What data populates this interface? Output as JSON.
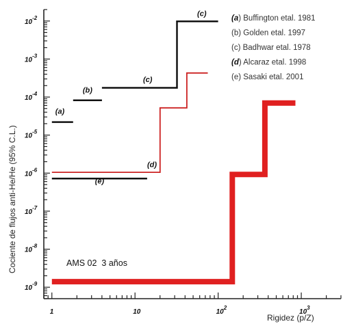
{
  "chart_data": {
    "type": "line",
    "title": "",
    "xlabel": "Rigidez (p/Z)",
    "ylabel": "Cociente de flujos anti-He/He  (95% C.L.)",
    "xscale": "log",
    "yscale": "log",
    "xlim": [
      0.8,
      3000
    ],
    "ylim": [
      5e-10,
      0.02
    ],
    "grid": false,
    "x_ticks": [
      {
        "value": 1,
        "label": "1"
      },
      {
        "value": 10,
        "label": "10"
      },
      {
        "value": 100,
        "label": "10",
        "exp": "2"
      },
      {
        "value": 1000,
        "label": "10",
        "exp": "3"
      }
    ],
    "y_ticks": [
      {
        "value": 0.01,
        "label": "10",
        "exp": "-2"
      },
      {
        "value": 0.001,
        "label": "10",
        "exp": "-3"
      },
      {
        "value": 0.0001,
        "label": "10",
        "exp": "-4"
      },
      {
        "value": 1e-05,
        "label": "10",
        "exp": "-5"
      },
      {
        "value": 1e-06,
        "label": "10",
        "exp": "-6"
      },
      {
        "value": 1e-07,
        "label": "10",
        "exp": "-7"
      },
      {
        "value": 1e-08,
        "label": "10",
        "exp": "-8"
      },
      {
        "value": 1e-09,
        "label": "10",
        "exp": "-9"
      }
    ],
    "legend": {
      "placement": "top-right",
      "entries": [
        {
          "tag": "(a",
          "text": ") Buffington etal. 1981"
        },
        {
          "tag": "",
          "text": "(b) Golden etal. 1997"
        },
        {
          "tag": "",
          "text": "(c) Badhwar etal. 1978"
        },
        {
          "tag": "(d",
          "text": ") Alcaraz etal. 1998"
        },
        {
          "tag": "",
          "text": "(e) Sasaki etal. 2001"
        }
      ]
    },
    "series": [
      {
        "tag": "(a)",
        "color": "#111111",
        "width": 2.5,
        "steps": [
          [
            1.0,
            2.2e-05
          ],
          [
            1.8,
            2.2e-05
          ]
        ],
        "tag_at": [
          1.1,
          3.6e-05
        ]
      },
      {
        "tag": "(b)",
        "color": "#111111",
        "width": 2.5,
        "steps": [
          [
            1.8,
            8.2e-05
          ],
          [
            4.0,
            8.2e-05
          ]
        ],
        "tag_at": [
          2.35,
          0.00013
        ]
      },
      {
        "tag": "(c)",
        "color": "#111111",
        "width": 2.5,
        "steps": [
          [
            4.0,
            0.000175
          ],
          [
            32,
            0.000175
          ],
          [
            32,
            0.0098
          ],
          [
            100,
            0.0098
          ]
        ],
        "tag_at": [
          12.5,
          0.00025
        ],
        "tag2_at": [
          56,
          0.0135
        ]
      },
      {
        "tag": "(d)",
        "color": "#cc2222",
        "width": 1.8,
        "steps": [
          [
            1.0,
            1.05e-06
          ],
          [
            20,
            1.05e-06
          ],
          [
            20,
            5.2e-05
          ],
          [
            42,
            5.2e-05
          ],
          [
            42,
            0.00043
          ],
          [
            75,
            0.00043
          ]
        ],
        "tag_at": [
          14,
          1.45e-06
        ]
      },
      {
        "tag": "(e)",
        "color": "#111111",
        "width": 2.5,
        "steps": [
          [
            1.0,
            7.2e-07
          ],
          [
            14,
            7.2e-07
          ]
        ],
        "tag_at": [
          3.3,
          5.3e-07
        ]
      },
      {
        "tag": "AMS 02 3 años",
        "color": "#e02020",
        "width": 8,
        "steps": [
          [
            1.0,
            1.4e-09
          ],
          [
            148,
            1.4e-09
          ],
          [
            148,
            9.2e-07
          ],
          [
            365,
            9.2e-07
          ],
          [
            365,
            7e-05
          ],
          [
            850,
            7e-05
          ]
        ]
      }
    ],
    "annotation": "AMS 02  3 años"
  }
}
